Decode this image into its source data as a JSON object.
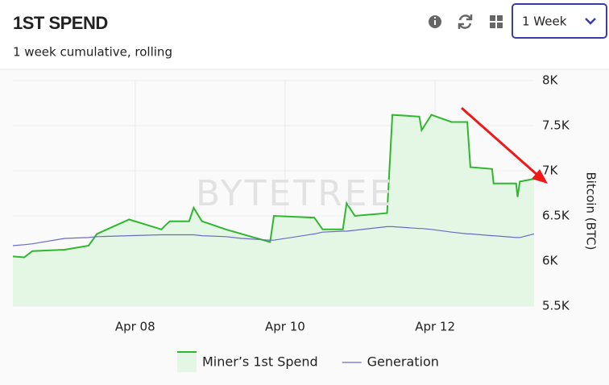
{
  "header": {
    "title": "1ST SPEND",
    "subtitle": "1 week cumulative, rolling",
    "range": "1 Week"
  },
  "chart_data": {
    "type": "line",
    "watermark": "BYTETREE",
    "y_axis_label": "Bitcoin (BTC)",
    "x": [
      6.37,
      6.52,
      6.63,
      7.06,
      7.38,
      7.49,
      7.92,
      8.35,
      8.46,
      8.72,
      8.78,
      8.89,
      9.21,
      9.42,
      9.8,
      9.85,
      10.39,
      10.5,
      10.77,
      10.82,
      10.93,
      11.36,
      11.43,
      11.79,
      11.82,
      11.95,
      12.22,
      12.43,
      12.47,
      12.76,
      12.78,
      13.08,
      13.1,
      13.13,
      13.32
    ],
    "series": [
      {
        "name": "Miner’s 1st Spend",
        "color": "#2eb82e",
        "fill": "#e4f6e4",
        "values": [
          6050,
          6040,
          6110,
          6125,
          6170,
          6300,
          6460,
          6350,
          6440,
          6440,
          6590,
          6440,
          6350,
          6300,
          6210,
          6500,
          6480,
          6350,
          6350,
          6640,
          6500,
          6530,
          7620,
          7600,
          7450,
          7620,
          7540,
          7540,
          7040,
          7020,
          6860,
          6860,
          6710,
          6880,
          6910
        ]
      },
      {
        "name": "Generation",
        "color": "#6a6ac8",
        "values": [
          6170,
          6180,
          6190,
          6250,
          6260,
          6270,
          6280,
          6290,
          6290,
          6290,
          6290,
          6280,
          6270,
          6250,
          6230,
          6230,
          6300,
          6320,
          6330,
          6330,
          6340,
          6380,
          6380,
          6360,
          6360,
          6350,
          6320,
          6300,
          6300,
          6280,
          6280,
          6260,
          6260,
          6260,
          6300
        ]
      }
    ],
    "xlim": [
      6.37,
      13.32
    ],
    "xticks": [
      {
        "value": 8,
        "label": "Apr 08"
      },
      {
        "value": 10,
        "label": "Apr 10"
      },
      {
        "value": 12,
        "label": "Apr 12"
      }
    ],
    "ylim": [
      5500,
      8000
    ],
    "yticks": [
      {
        "value": 5500,
        "label": "5.5K"
      },
      {
        "value": 6000,
        "label": "6K"
      },
      {
        "value": 6500,
        "label": "6.5K"
      },
      {
        "value": 7000,
        "label": "7K"
      },
      {
        "value": 7500,
        "label": "7.5K"
      },
      {
        "value": 8000,
        "label": "8K"
      }
    ],
    "grid": true
  }
}
